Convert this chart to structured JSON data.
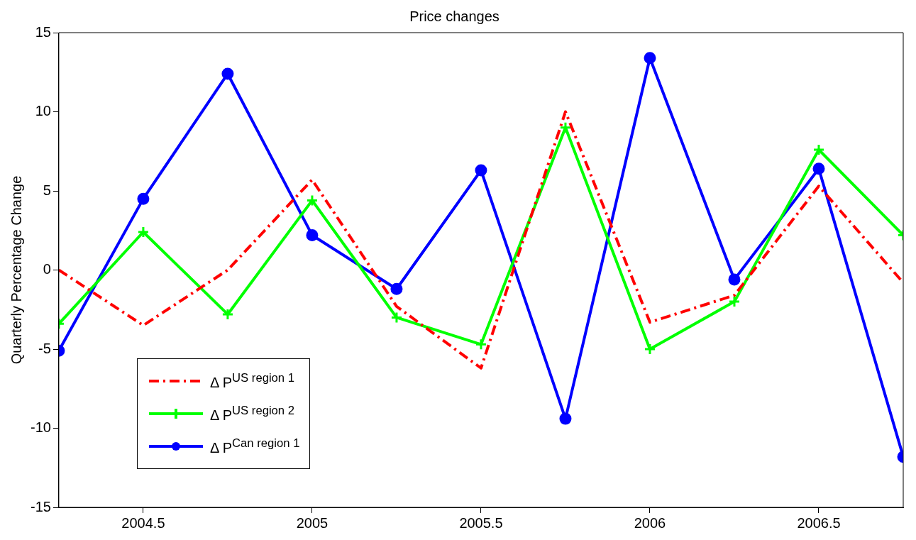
{
  "chart_data": {
    "type": "line",
    "title": "Price changes",
    "ylabel": "Quarterly Percentage Change",
    "x": [
      2004.25,
      2004.5,
      2004.75,
      2005,
      2005.25,
      2005.5,
      2005.75,
      2006,
      2006.25,
      2006.5,
      2006.75
    ],
    "series": [
      {
        "name": "Δ P$^{US region 1}$",
        "color": "#ff0000",
        "marker": "none",
        "line_style": "dashdot",
        "values": [
          0,
          -3.5,
          0,
          5.7,
          -2.3,
          -6.2,
          10,
          -3.3,
          -1.6,
          5.3,
          -0.8
        ]
      },
      {
        "name": "Δ P$^{US region 2}$",
        "color": "#00ff00",
        "marker": "cross",
        "line_style": "solid",
        "values": [
          -3.4,
          2.4,
          -2.8,
          4.4,
          -3,
          -4.7,
          9,
          -5,
          -2,
          7.6,
          2.2
        ]
      },
      {
        "name": "Δ P$^{Can region 1}$",
        "color": "#0000ff",
        "marker": "circle",
        "line_style": "solid",
        "values": [
          -5.1,
          4.5,
          12.4,
          2.2,
          -1.2,
          6.3,
          -9.4,
          13.4,
          -0.6,
          6.4,
          -11.8
        ]
      }
    ],
    "xlim": [
      2004.25,
      2006.75
    ],
    "xticks": [
      2004.5,
      2005,
      2005.5,
      2006,
      2006.5
    ],
    "ylim": [
      -15,
      15
    ],
    "yticks": [
      -15,
      -10,
      -5,
      0,
      5,
      10,
      15
    ],
    "grid": false,
    "legend": "bottom left"
  }
}
